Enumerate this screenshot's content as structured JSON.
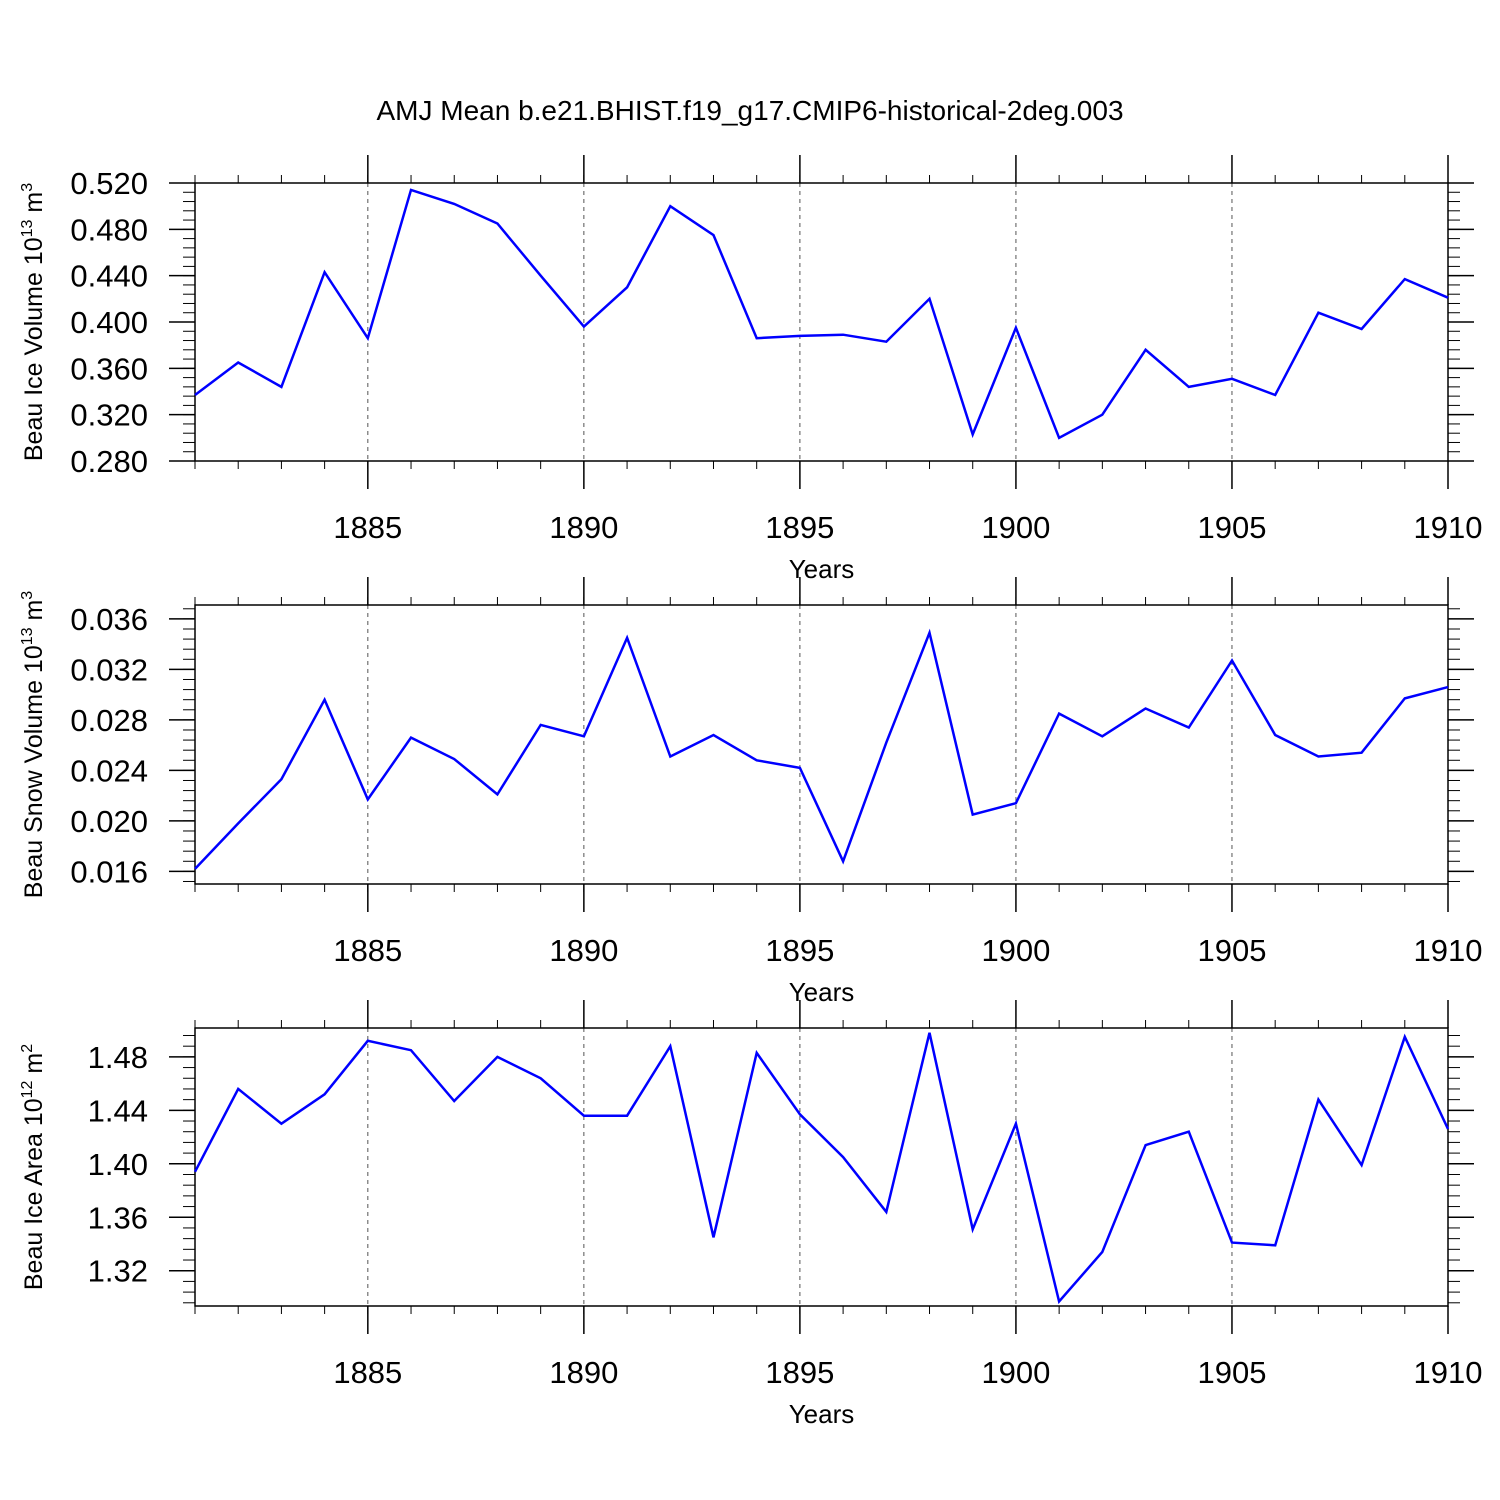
{
  "figure": {
    "title": "AMJ Mean b.e21.BHIST.f19_g17.CMIP6-historical-2deg.003"
  },
  "chart_data": [
    {
      "type": "line",
      "title": "",
      "xlabel": "Years",
      "ylabel": "Beau Ice Volume 10",
      "ylabel_exp": "13",
      "ylabel_unit": " m",
      "ylabel_unit_exp": "3",
      "x_range": [
        1881,
        1910
      ],
      "x_ticks": [
        1885,
        1890,
        1895,
        1900,
        1905,
        1910
      ],
      "x_tick_labels": [
        "1885",
        "1890",
        "1895",
        "1900",
        "1905",
        "1910"
      ],
      "ylim": [
        0.28,
        0.52
      ],
      "y_ticks": [
        0.28,
        0.32,
        0.36,
        0.4,
        0.44,
        0.48,
        0.52
      ],
      "y_tick_labels": [
        "0.280",
        "0.320",
        "0.360",
        "0.400",
        "0.440",
        "0.480",
        "0.520"
      ],
      "y_minor_step": 0.008,
      "grid": "vertical dashed at major x ticks",
      "line_color": "#0000ff",
      "x": [
        1881,
        1882,
        1883,
        1884,
        1885,
        1886,
        1887,
        1888,
        1889,
        1890,
        1891,
        1892,
        1893,
        1894,
        1895,
        1896,
        1897,
        1898,
        1899,
        1900,
        1901,
        1902,
        1903,
        1904,
        1905,
        1906,
        1907,
        1908,
        1909,
        1910
      ],
      "values": [
        0.337,
        0.365,
        0.344,
        0.443,
        0.386,
        0.514,
        0.502,
        0.485,
        0.44,
        0.396,
        0.43,
        0.5,
        0.475,
        0.386,
        0.388,
        0.389,
        0.383,
        0.42,
        0.303,
        0.395,
        0.3,
        0.32,
        0.376,
        0.344,
        0.351,
        0.337,
        0.408,
        0.394,
        0.437,
        0.421
      ]
    },
    {
      "type": "line",
      "title": "",
      "xlabel": "Years",
      "ylabel": "Beau Snow Volume 10",
      "ylabel_exp": "13",
      "ylabel_unit": " m",
      "ylabel_unit_exp": "3",
      "x_range": [
        1881,
        1910
      ],
      "x_ticks": [
        1885,
        1890,
        1895,
        1900,
        1905,
        1910
      ],
      "x_tick_labels": [
        "1885",
        "1890",
        "1895",
        "1900",
        "1905",
        "1910"
      ],
      "ylim": [
        0.015,
        0.0371
      ],
      "y_ticks": [
        0.016,
        0.02,
        0.024,
        0.028,
        0.032,
        0.036
      ],
      "y_tick_labels": [
        "0.016",
        "0.020",
        "0.024",
        "0.028",
        "0.032",
        "0.036"
      ],
      "y_minor_step": 0.0008,
      "grid": "vertical dashed at major x ticks",
      "line_color": "#0000ff",
      "x": [
        1881,
        1882,
        1883,
        1884,
        1885,
        1886,
        1887,
        1888,
        1889,
        1890,
        1891,
        1892,
        1893,
        1894,
        1895,
        1896,
        1897,
        1898,
        1899,
        1900,
        1901,
        1902,
        1903,
        1904,
        1905,
        1906,
        1907,
        1908,
        1909,
        1910
      ],
      "values": [
        0.0162,
        0.0198,
        0.0233,
        0.0296,
        0.0217,
        0.0266,
        0.0249,
        0.0221,
        0.0276,
        0.0267,
        0.0345,
        0.0251,
        0.0268,
        0.0248,
        0.0242,
        0.0168,
        0.0262,
        0.0349,
        0.0205,
        0.0214,
        0.0285,
        0.0267,
        0.0289,
        0.0274,
        0.0327,
        0.0268,
        0.0251,
        0.0254,
        0.0297,
        0.0306
      ]
    },
    {
      "type": "line",
      "title": "",
      "xlabel": "Years",
      "ylabel": "Beau Ice Area 10",
      "ylabel_exp": "12",
      "ylabel_unit": " m",
      "ylabel_unit_exp": "2",
      "x_range": [
        1881,
        1910
      ],
      "x_ticks": [
        1885,
        1890,
        1895,
        1900,
        1905,
        1910
      ],
      "x_tick_labels": [
        "1885",
        "1890",
        "1895",
        "1900",
        "1905",
        "1910"
      ],
      "ylim": [
        1.2936,
        1.5016
      ],
      "y_ticks": [
        1.32,
        1.36,
        1.4,
        1.44,
        1.48
      ],
      "y_tick_labels": [
        "1.32",
        "1.36",
        "1.40",
        "1.44",
        "1.48"
      ],
      "y_minor_step": 0.008,
      "grid": "vertical dashed at major x ticks",
      "line_color": "#0000ff",
      "x": [
        1881,
        1882,
        1883,
        1884,
        1885,
        1886,
        1887,
        1888,
        1889,
        1890,
        1891,
        1892,
        1893,
        1894,
        1895,
        1896,
        1897,
        1898,
        1899,
        1900,
        1901,
        1902,
        1903,
        1904,
        1905,
        1906,
        1907,
        1908,
        1909,
        1910
      ],
      "values": [
        1.394,
        1.456,
        1.43,
        1.452,
        1.492,
        1.485,
        1.447,
        1.48,
        1.464,
        1.436,
        1.436,
        1.488,
        1.345,
        1.483,
        1.437,
        1.405,
        1.364,
        1.498,
        1.351,
        1.43,
        1.297,
        1.334,
        1.414,
        1.424,
        1.341,
        1.339,
        1.448,
        1.399,
        1.495,
        1.426
      ]
    }
  ]
}
